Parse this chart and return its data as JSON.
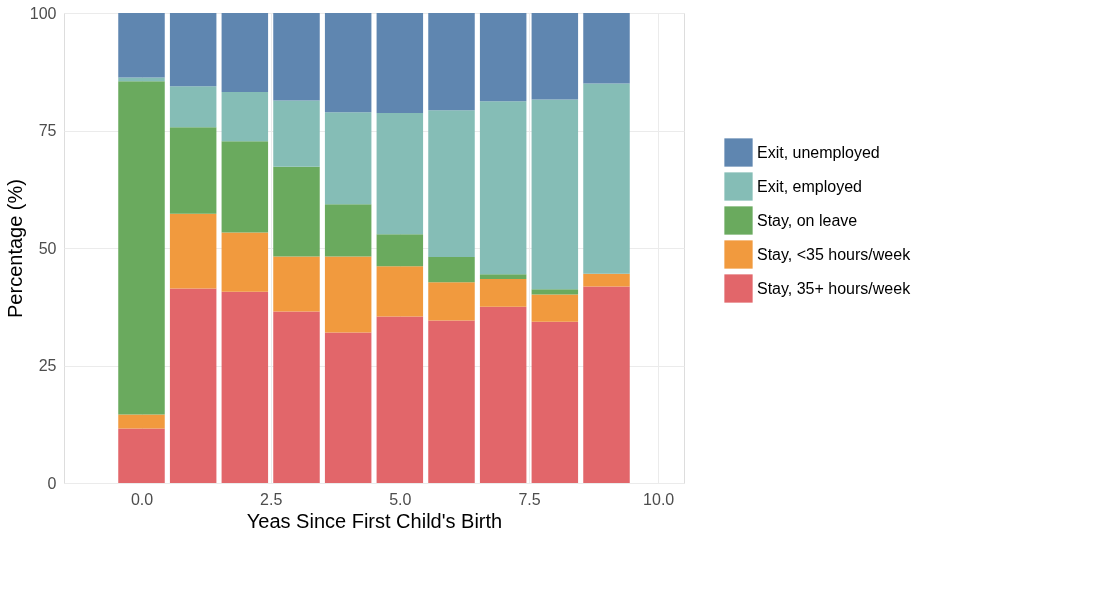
{
  "chart_data": {
    "type": "bar",
    "stacked": true,
    "xlabel": "Yeas Since First Child's Birth",
    "ylabel": "Percentage (%)",
    "x": [
      0,
      1,
      2,
      3,
      4,
      5,
      6,
      7,
      8,
      9
    ],
    "series": [
      {
        "name": "Stay, 35+ hours/week",
        "color": "#e2666a",
        "values": [
          11.6,
          41.4,
          40.7,
          36.5,
          32.0,
          35.4,
          34.6,
          37.5,
          34.3,
          41.8
        ]
      },
      {
        "name": "Stay, <35 hours/week",
        "color": "#f19a3e",
        "values": [
          3.0,
          15.9,
          12.6,
          11.7,
          16.2,
          10.7,
          8.1,
          5.9,
          5.8,
          2.7
        ]
      },
      {
        "name": "Stay, on leave",
        "color": "#6aaa5e",
        "values": [
          70.9,
          18.4,
          19.4,
          19.1,
          11.1,
          6.8,
          5.4,
          1.0,
          1.1,
          0.0
        ]
      },
      {
        "name": "Exit, employed",
        "color": "#85bdb6",
        "values": [
          0.8,
          8.7,
          10.5,
          14.1,
          19.6,
          25.8,
          31.2,
          36.8,
          40.4,
          40.5
        ]
      },
      {
        "name": "Exit, unemployed",
        "color": "#5f86b0",
        "values": [
          13.7,
          15.6,
          16.8,
          18.6,
          21.1,
          21.3,
          20.7,
          18.8,
          18.4,
          15.0
        ]
      }
    ],
    "xlim": [
      -1.5,
      10.5
    ],
    "xticks": [
      {
        "value": 0,
        "label": "0.0"
      },
      2.5,
      {
        "value": 5,
        "label": "5.0"
      },
      7.5,
      {
        "value": 10,
        "label": "10.0"
      }
    ],
    "ylim": [
      0,
      100
    ],
    "yticks": [
      0,
      25,
      50,
      75,
      100
    ],
    "grid": true,
    "legend": "right"
  }
}
